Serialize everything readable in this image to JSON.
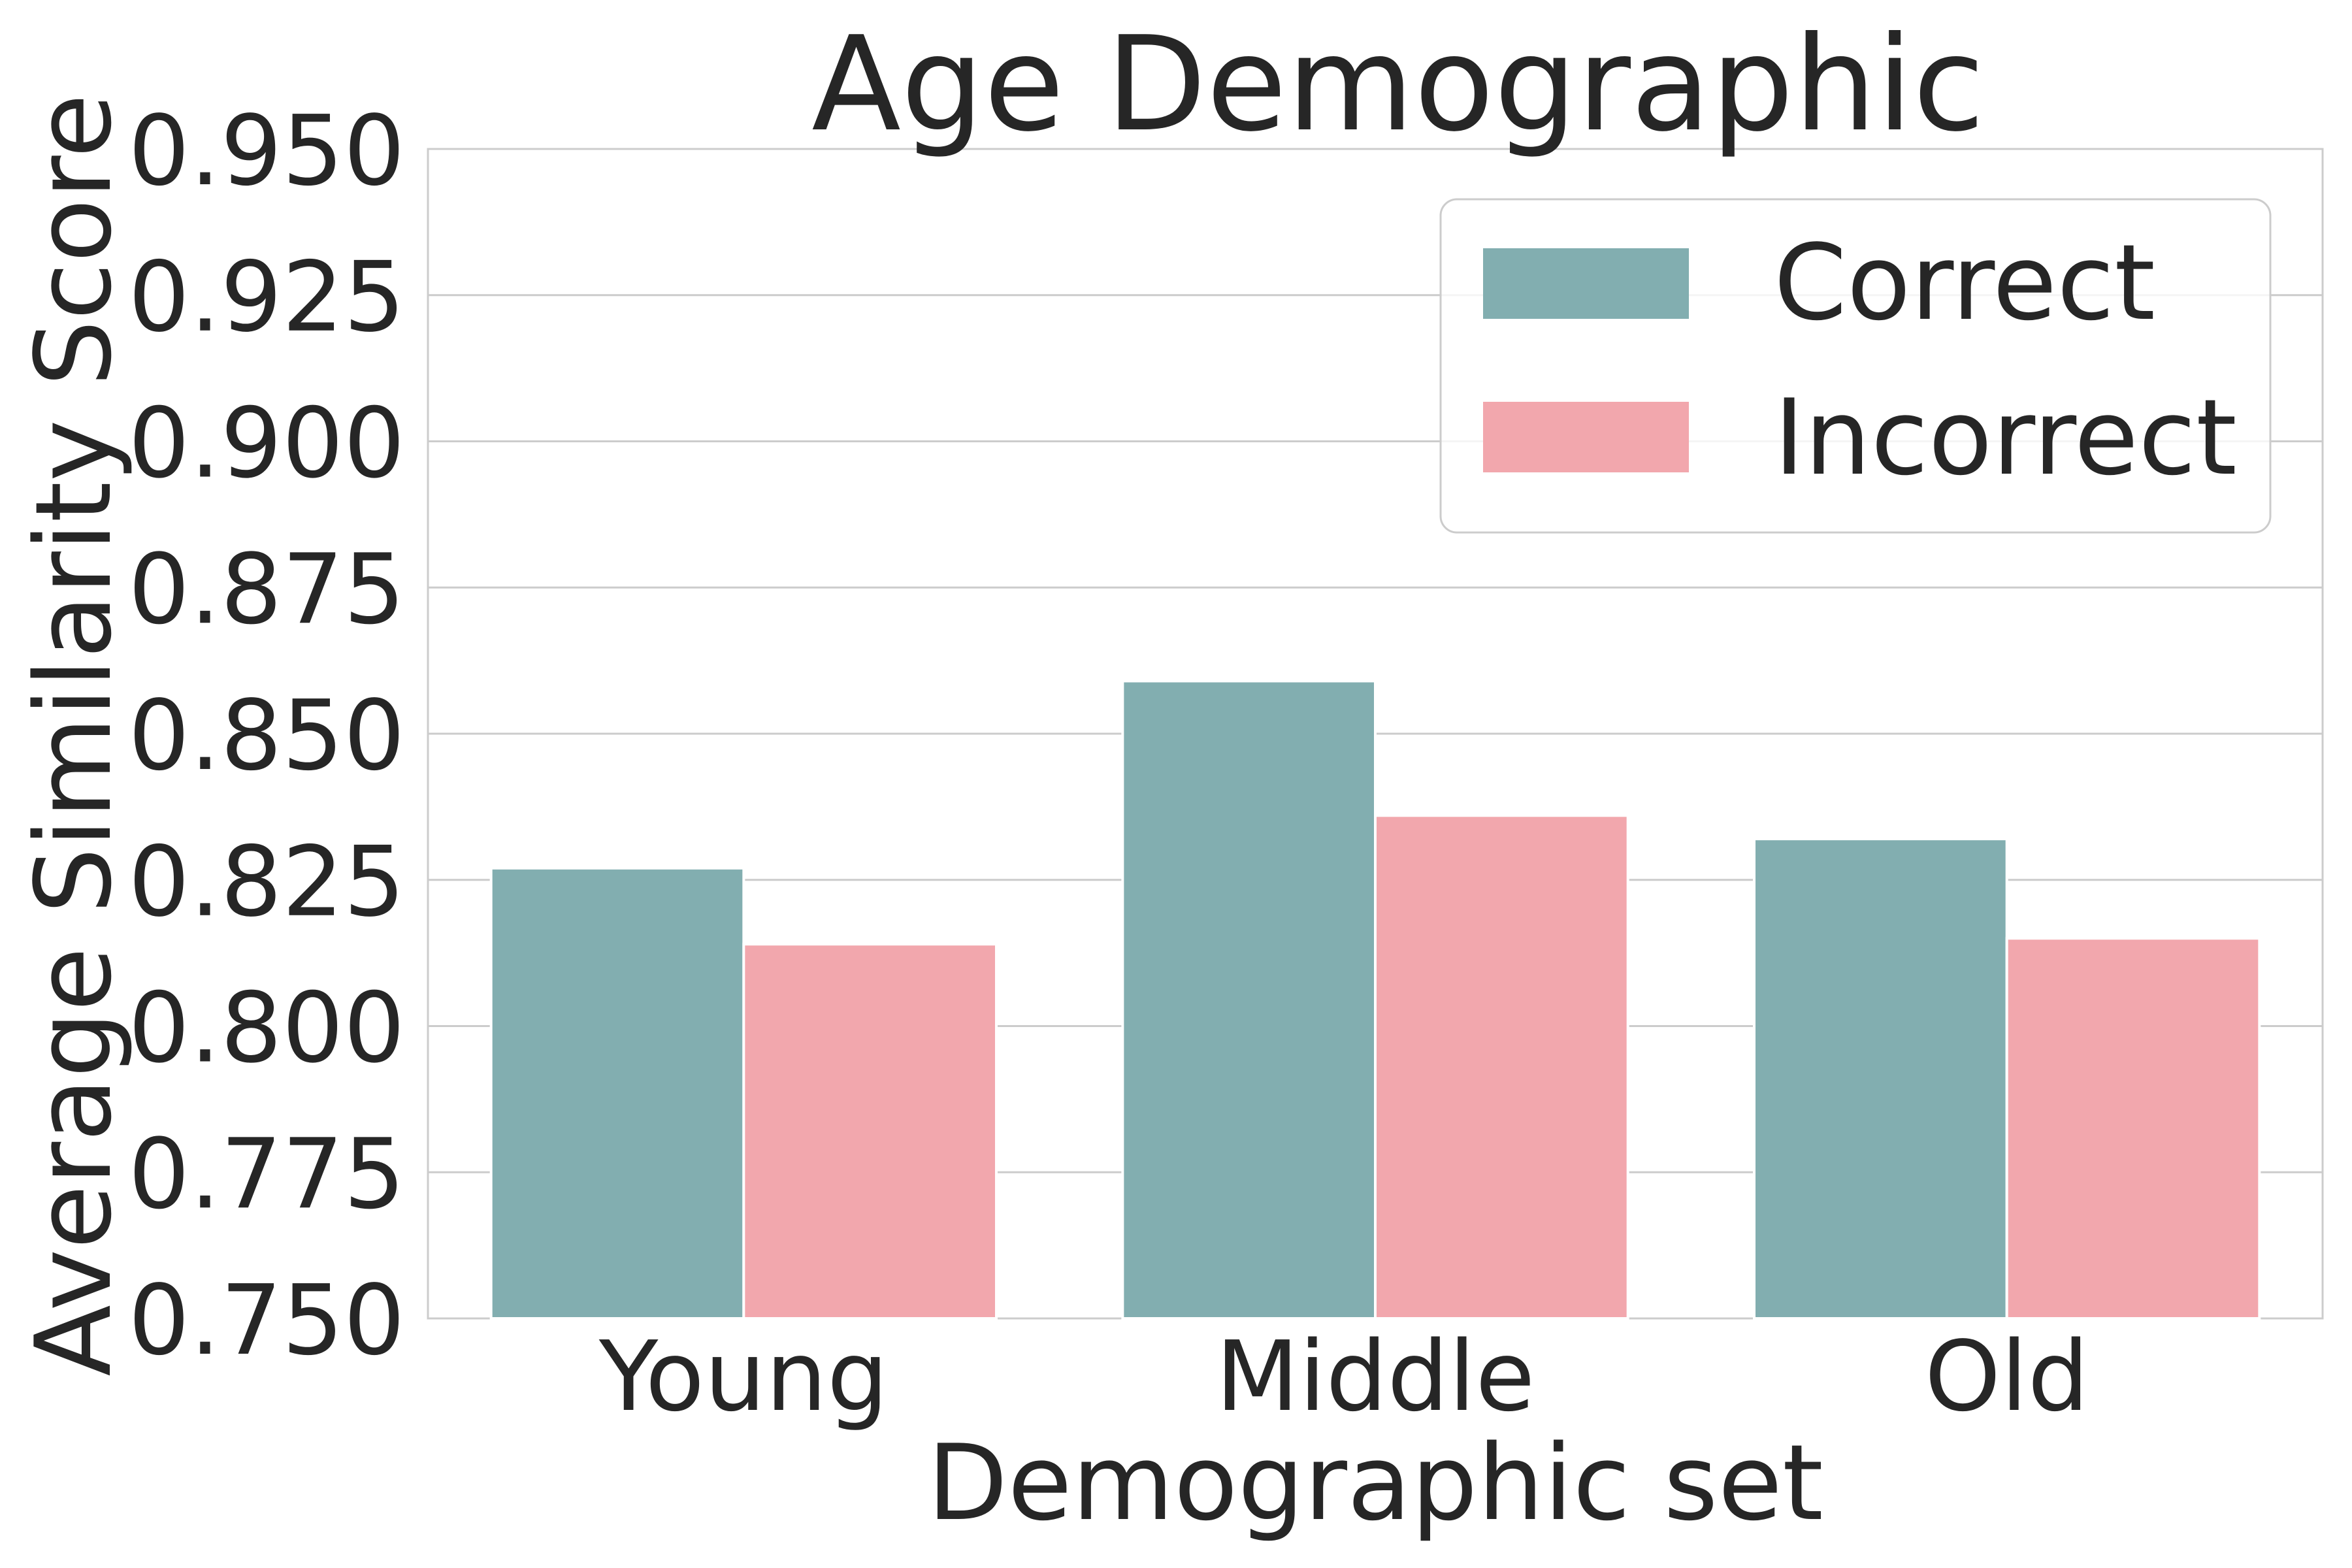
{
  "chart_data": {
    "type": "bar",
    "title": "Age Demographic",
    "xlabel": "Demographic set",
    "ylabel": "Average Similarity Score",
    "categories": [
      "Young",
      "Middle",
      "Old"
    ],
    "series": [
      {
        "name": "Correct",
        "color": "#82aeb0",
        "values": [
          0.827,
          0.859,
          0.832
        ]
      },
      {
        "name": "Incorrect",
        "color": "#f2a7ad",
        "values": [
          0.814,
          0.836,
          0.815
        ]
      }
    ],
    "ylim": [
      0.75,
      0.95
    ],
    "yticks": [
      "0.750",
      "0.775",
      "0.800",
      "0.825",
      "0.850",
      "0.875",
      "0.900",
      "0.925",
      "0.950"
    ],
    "grid": true,
    "legend_position": "top-right"
  }
}
